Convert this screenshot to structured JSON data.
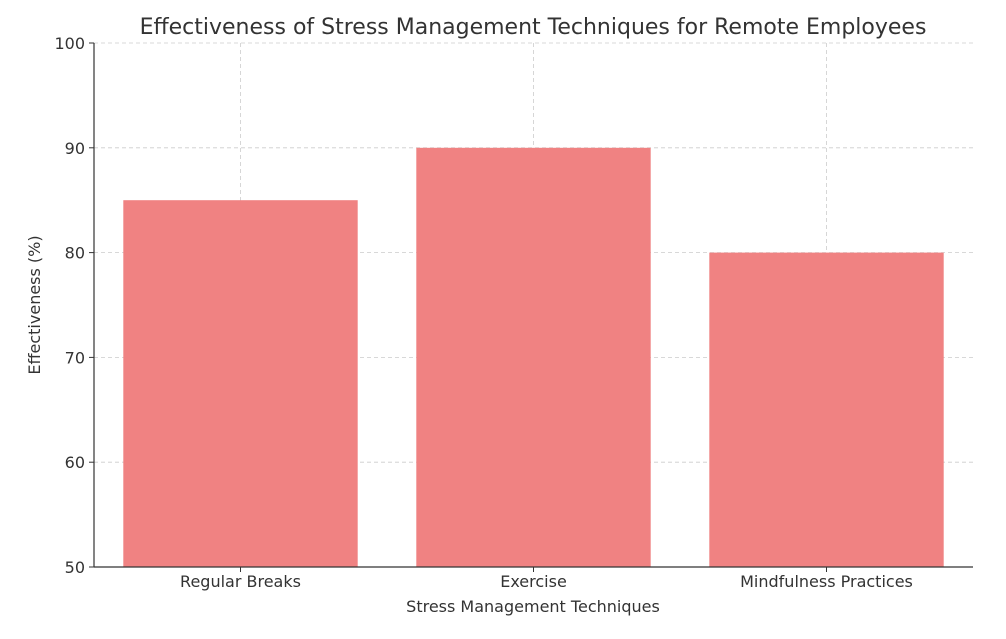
{
  "chart_data": {
    "type": "bar",
    "title": "Effectiveness of Stress Management Techniques for Remote Employees",
    "xlabel": "Stress Management Techniques",
    "ylabel": "Effectiveness (%)",
    "categories": [
      "Regular Breaks",
      "Exercise",
      "Mindfulness Practices"
    ],
    "values": [
      85,
      90,
      80
    ],
    "ylim": [
      50,
      100
    ],
    "yticks": [
      "50",
      "60",
      "70",
      "80",
      "90",
      "100"
    ],
    "grid": true,
    "bar_color": "#f08080",
    "grid_color": "#cccccc",
    "axis_color": "#333333"
  }
}
